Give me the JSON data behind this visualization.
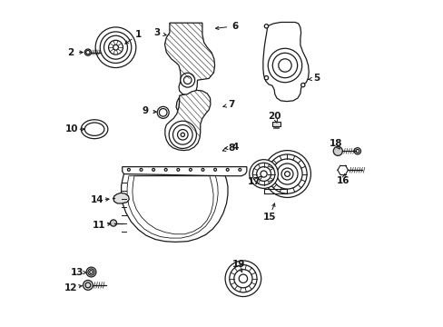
{
  "background": "#ffffff",
  "line_color": "#1a1a1a",
  "fig_width": 4.89,
  "fig_height": 3.6,
  "dpi": 100,
  "labels": [
    [
      1,
      0.245,
      0.895,
      0.195,
      0.86
    ],
    [
      2,
      0.038,
      0.84,
      0.085,
      0.84
    ],
    [
      3,
      0.3,
      0.9,
      0.34,
      0.89
    ],
    [
      4,
      0.54,
      0.55,
      0.498,
      0.545
    ],
    [
      5,
      0.79,
      0.76,
      0.755,
      0.756
    ],
    [
      6,
      0.54,
      0.92,
      0.47,
      0.912
    ],
    [
      7,
      0.53,
      0.68,
      0.494,
      0.672
    ],
    [
      8,
      0.53,
      0.548,
      0.492,
      0.536
    ],
    [
      9,
      0.265,
      0.66,
      0.31,
      0.657
    ],
    [
      10,
      0.04,
      0.605,
      0.09,
      0.605
    ],
    [
      11,
      0.125,
      0.31,
      0.17,
      0.318
    ],
    [
      12,
      0.038,
      0.12,
      0.082,
      0.128
    ],
    [
      13,
      0.058,
      0.168,
      0.095,
      0.165
    ],
    [
      14,
      0.118,
      0.388,
      0.165,
      0.392
    ],
    [
      15,
      0.645,
      0.335,
      0.665,
      0.388
    ],
    [
      16,
      0.872,
      0.448,
      0.876,
      0.47
    ],
    [
      17,
      0.6,
      0.445,
      0.625,
      0.462
    ],
    [
      18,
      0.848,
      0.56,
      0.862,
      0.542
    ],
    [
      19,
      0.552,
      0.192,
      0.565,
      0.158
    ],
    [
      20,
      0.662,
      0.645,
      0.669,
      0.622
    ]
  ]
}
